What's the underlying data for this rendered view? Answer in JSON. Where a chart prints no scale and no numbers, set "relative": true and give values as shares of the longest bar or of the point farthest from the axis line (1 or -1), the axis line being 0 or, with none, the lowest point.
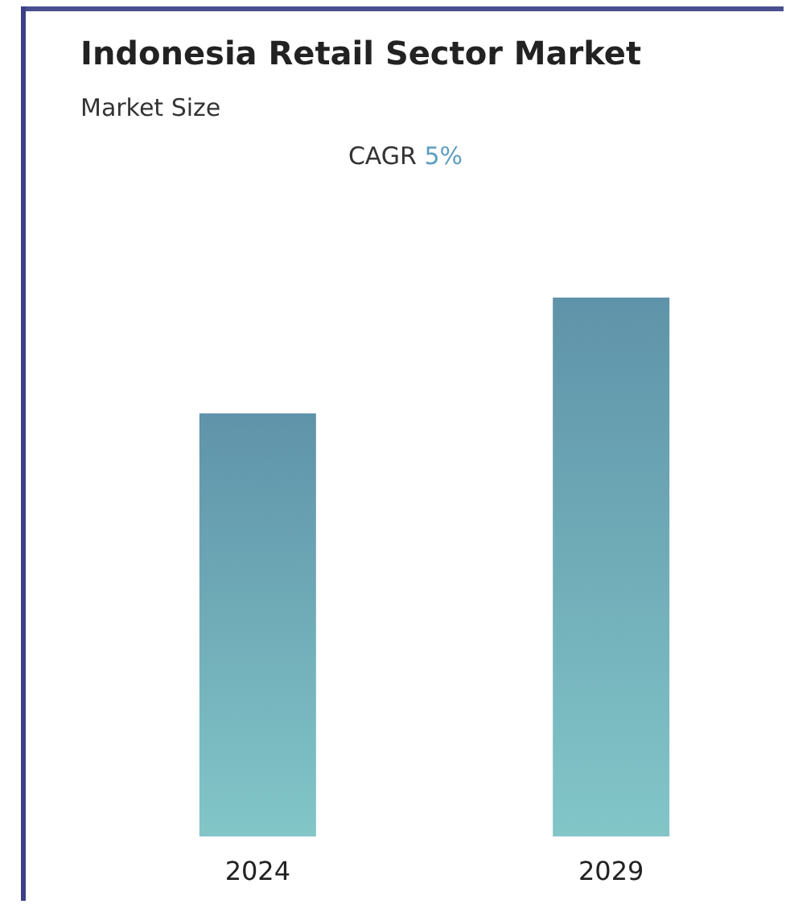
{
  "chart_data": {
    "type": "bar",
    "title": "Indonesia Retail Sector Market",
    "subtitle": "Market Size",
    "annotations": [
      "CAGR 5%"
    ],
    "categories": [
      "2024",
      "2029"
    ],
    "values": [
      0.785,
      1
    ],
    "color": "#6aa4bc",
    "relative": true
  }
}
